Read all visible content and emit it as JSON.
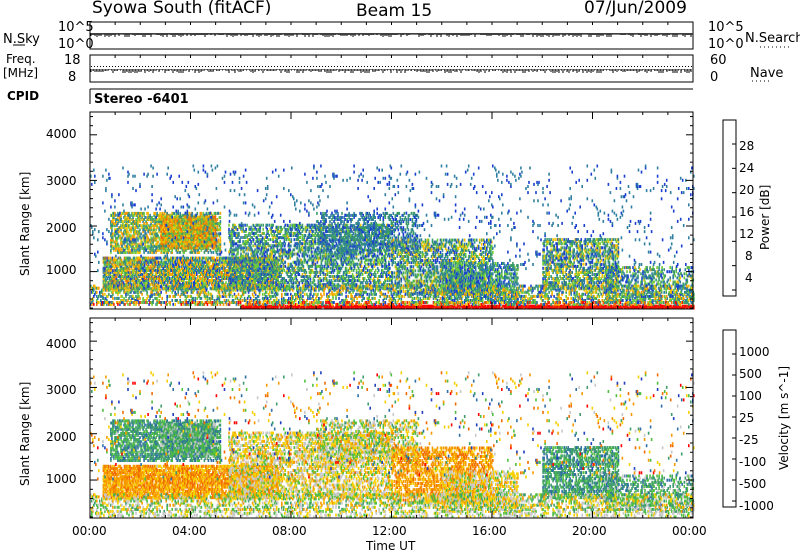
{
  "header": {
    "station": "Syowa South (fitACF)",
    "beam": "Beam 15",
    "date": "07/Jun/2009"
  },
  "top_panels": {
    "nsky_label": "N.Sky",
    "nsky_ticks": [
      "10^5",
      "10^0"
    ],
    "nsearch_label": "N.Search",
    "nsearch_ticks": [
      "10^5",
      "10^0"
    ],
    "freq_label": "Freq.",
    "freq_unit": "[MHz]",
    "freq_ticks": [
      "18",
      "8"
    ],
    "nave_label": "Nave",
    "nave_ticks": [
      "60",
      "0"
    ],
    "cpid_label": "CPID",
    "cpid_value": "Stereo -6401"
  },
  "chart_data": [
    {
      "type": "heatmap",
      "name": "power",
      "ylabel": "Slant Range [km]",
      "yticks": [
        "4000",
        "3000",
        "2000",
        "1000"
      ],
      "ylim": [
        180,
        4500
      ],
      "xlim": [
        0,
        24
      ],
      "colorbar_label": "Power [dB]",
      "colorbar_ticks": [
        "28",
        "24",
        "20",
        "16",
        "12",
        "8",
        "4"
      ],
      "colorbar_range": [
        0,
        30
      ],
      "colorscale": [
        "#1a1aff",
        "#1a3fd0",
        "#2f7fa0",
        "#3a9a6a",
        "#6ecb3a",
        "#f2c200",
        "#f59a00",
        "#f06a00",
        "#e83000",
        "#ff0000"
      ],
      "scatter_regions": [
        {
          "t": [
            0.8,
            5.2
          ],
          "r": [
            1400,
            2300
          ],
          "density": 0.55,
          "value": [
            6,
            20
          ]
        },
        {
          "t": [
            2.8,
            5.0
          ],
          "r": [
            1500,
            2200
          ],
          "density": 0.8,
          "value": [
            10,
            24
          ]
        },
        {
          "t": [
            0.5,
            7.5
          ],
          "r": [
            600,
            1300
          ],
          "density": 0.75,
          "value": [
            4,
            22
          ]
        },
        {
          "t": [
            5.5,
            12.0
          ],
          "r": [
            600,
            2000
          ],
          "density": 0.45,
          "value": [
            4,
            16
          ]
        },
        {
          "t": [
            9.0,
            13.0
          ],
          "r": [
            1400,
            2300
          ],
          "density": 0.35,
          "value": [
            4,
            12
          ]
        },
        {
          "t": [
            12.0,
            16.0
          ],
          "r": [
            500,
            1700
          ],
          "density": 0.45,
          "value": [
            4,
            18
          ]
        },
        {
          "t": [
            14.0,
            17.0
          ],
          "r": [
            300,
            1200
          ],
          "density": 0.5,
          "value": [
            4,
            14
          ]
        },
        {
          "t": [
            18.0,
            21.0
          ],
          "r": [
            600,
            1700
          ],
          "density": 0.5,
          "value": [
            4,
            18
          ]
        },
        {
          "t": [
            20.5,
            24.0
          ],
          "r": [
            300,
            1100
          ],
          "density": 0.35,
          "value": [
            4,
            16
          ]
        },
        {
          "t": [
            0.0,
            24.0
          ],
          "r": [
            300,
            700
          ],
          "density": 0.35,
          "value": [
            4,
            20
          ]
        },
        {
          "t": [
            0.0,
            24.0
          ],
          "r": [
            1000,
            3300
          ],
          "density": 0.03,
          "value": [
            4,
            8
          ]
        }
      ],
      "bands": [
        {
          "t": [
            6.0,
            24.0
          ],
          "r": [
            180,
            260
          ],
          "value": [
            26,
            30
          ],
          "density": 0.9
        },
        {
          "t": [
            0.0,
            24.0
          ],
          "r": [
            260,
            330
          ],
          "value": [
            4,
            30
          ],
          "density": 0.4
        }
      ]
    },
    {
      "type": "heatmap",
      "name": "velocity",
      "ylabel": "Slant Range [km]",
      "yticks": [
        "4000",
        "3000",
        "2000",
        "1000"
      ],
      "ylim": [
        180,
        4500
      ],
      "xlim": [
        0,
        24
      ],
      "xlabel": "Time UT",
      "xticks": [
        "00:00",
        "04:00",
        "08:00",
        "12:00",
        "16:00",
        "20:00",
        "00:00"
      ],
      "colorbar_label": "Velocity [m s^-1]",
      "colorbar_ticks": [
        "1000",
        "500",
        "100",
        "25",
        "-25",
        "-100",
        "-500",
        "-1000"
      ],
      "colorscale": [
        "#1f3fbf",
        "#2f6fa6",
        "#3f9c6f",
        "#4fbf3f",
        "#c8c8c8",
        "#f7d000",
        "#f79a00",
        "#f06a00",
        "#ff0000"
      ],
      "scatter_regions": [
        {
          "t": [
            0.8,
            5.2
          ],
          "r": [
            1400,
            2300
          ],
          "density": 0.55,
          "value": [
            1,
            3
          ]
        },
        {
          "t": [
            2.8,
            5.0
          ],
          "r": [
            1500,
            2200
          ],
          "density": 0.8,
          "value": [
            1,
            4
          ]
        },
        {
          "t": [
            0.5,
            7.5
          ],
          "r": [
            600,
            1300
          ],
          "density": 0.75,
          "value": [
            5,
            7
          ]
        },
        {
          "t": [
            5.5,
            12.0
          ],
          "r": [
            600,
            2000
          ],
          "density": 0.45,
          "value": [
            3,
            6
          ]
        },
        {
          "t": [
            9.0,
            13.0
          ],
          "r": [
            1400,
            2300
          ],
          "density": 0.35,
          "value": [
            2,
            6
          ]
        },
        {
          "t": [
            12.0,
            16.0
          ],
          "r": [
            500,
            1700
          ],
          "density": 0.45,
          "value": [
            5,
            7
          ]
        },
        {
          "t": [
            14.0,
            17.0
          ],
          "r": [
            300,
            1200
          ],
          "density": 0.5,
          "value": [
            3,
            6
          ]
        },
        {
          "t": [
            18.0,
            21.0
          ],
          "r": [
            600,
            1700
          ],
          "density": 0.5,
          "value": [
            1,
            3
          ]
        },
        {
          "t": [
            20.5,
            24.0
          ],
          "r": [
            300,
            1100
          ],
          "density": 0.35,
          "value": [
            1,
            4
          ]
        },
        {
          "t": [
            0.0,
            24.0
          ],
          "r": [
            300,
            700
          ],
          "density": 0.35,
          "value": [
            2,
            6
          ]
        },
        {
          "t": [
            0.0,
            24.0
          ],
          "r": [
            1000,
            3300
          ],
          "density": 0.03,
          "value": [
            0,
            8
          ]
        }
      ],
      "bands": [
        {
          "t": [
            0.0,
            24.0
          ],
          "r": [
            180,
            300
          ],
          "value": [
            3,
            5
          ],
          "density": 0.25
        }
      ]
    }
  ]
}
